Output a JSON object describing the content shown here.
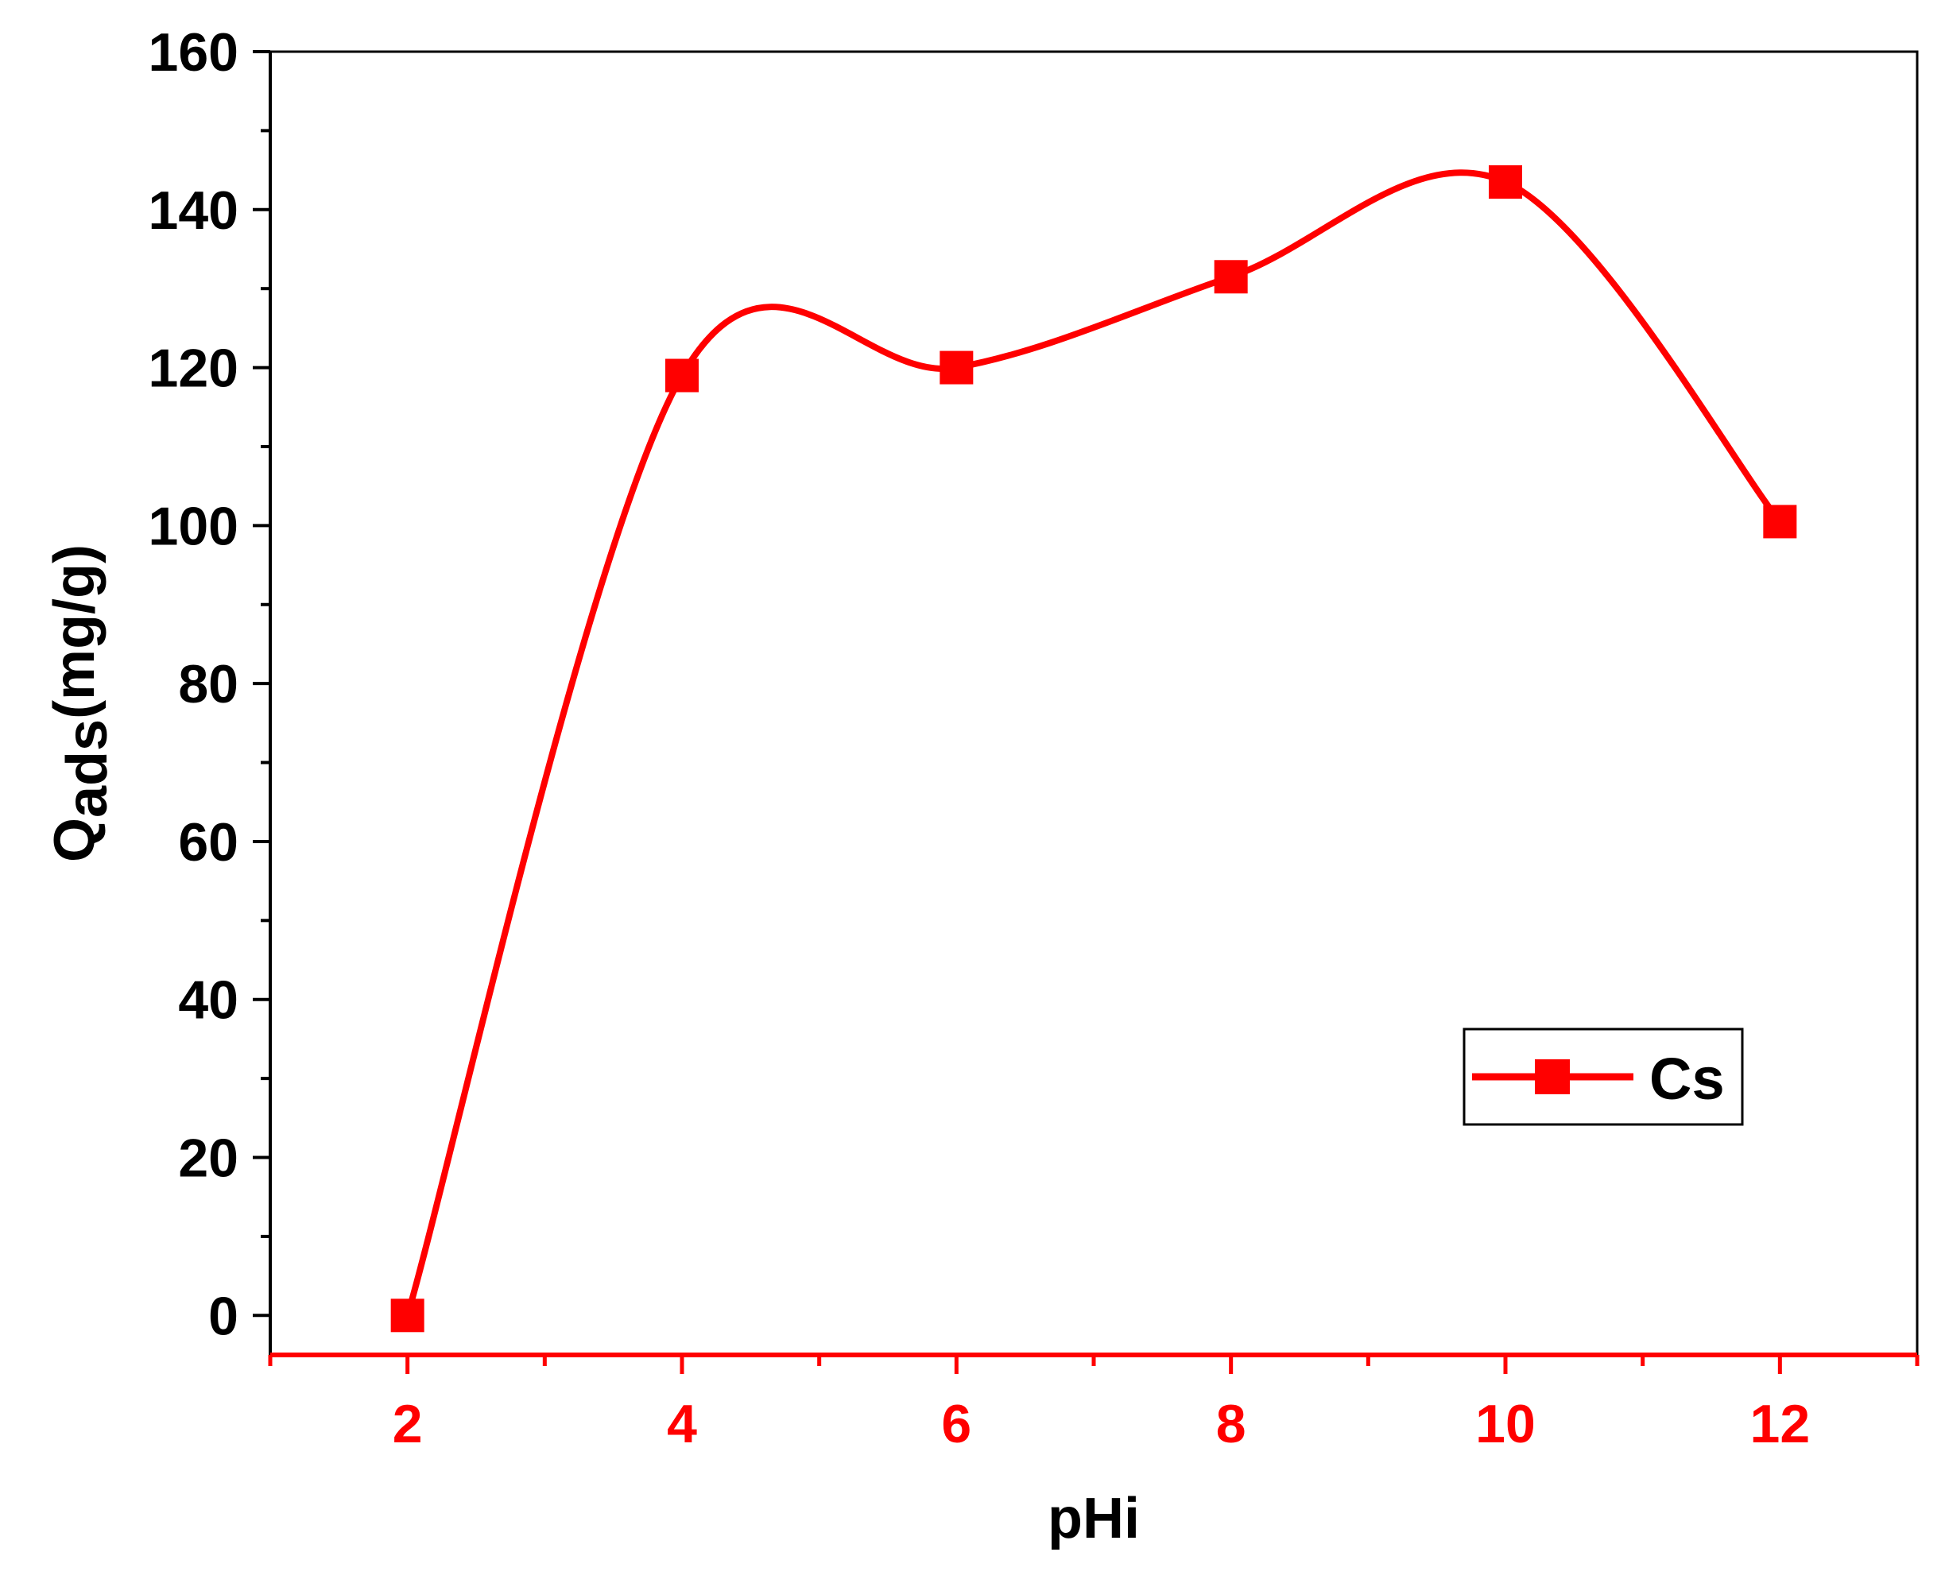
{
  "colors": {
    "series": "#ff0000",
    "axis": "#000000",
    "x_axis": "#ff0000",
    "background": "#ffffff"
  },
  "chart_data": {
    "type": "line",
    "title": "",
    "xlabel": "pHi",
    "ylabel": {
      "main": "Q",
      "sub": "ads",
      "unit": "(mg/g)"
    },
    "xlim": [
      1,
      13
    ],
    "ylim": [
      -5,
      160
    ],
    "x_ticks": [
      2,
      4,
      6,
      8,
      10,
      12
    ],
    "y_ticks": [
      0,
      20,
      40,
      60,
      80,
      100,
      120,
      140,
      160
    ],
    "grid": false,
    "legend_position": "bottom-right",
    "smooth": true,
    "series": [
      {
        "name": "Cs",
        "marker": "square",
        "x": [
          2,
          4,
          6,
          8,
          10,
          12
        ],
        "y": [
          0,
          119,
          120,
          131.5,
          143.5,
          100.5
        ]
      }
    ]
  }
}
